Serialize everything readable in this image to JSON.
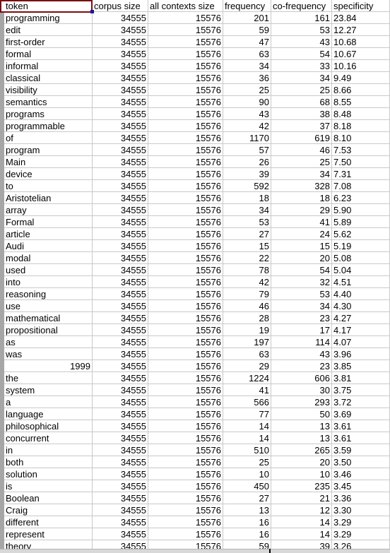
{
  "sheet": {
    "headers": [
      "token",
      "corpus size",
      "all contexts size",
      "frequency",
      "co-frequency",
      "specificity"
    ],
    "rows": [
      [
        "programming",
        "34555",
        "15576",
        "201",
        "161",
        "23.84"
      ],
      [
        "edit",
        "34555",
        "15576",
        "59",
        "53",
        "12.27"
      ],
      [
        "first-order",
        "34555",
        "15576",
        "47",
        "43",
        "10.68"
      ],
      [
        "formal",
        "34555",
        "15576",
        "63",
        "54",
        "10.67"
      ],
      [
        "informal",
        "34555",
        "15576",
        "34",
        "33",
        "10.16"
      ],
      [
        "classical",
        "34555",
        "15576",
        "36",
        "34",
        "9.49"
      ],
      [
        "visibility",
        "34555",
        "15576",
        "25",
        "25",
        "8.66"
      ],
      [
        "semantics",
        "34555",
        "15576",
        "90",
        "68",
        "8.55"
      ],
      [
        "programs",
        "34555",
        "15576",
        "43",
        "38",
        "8.48"
      ],
      [
        "programmable",
        "34555",
        "15576",
        "42",
        "37",
        "8.18"
      ],
      [
        "of",
        "34555",
        "15576",
        "1170",
        "619",
        "8.10"
      ],
      [
        "program",
        "34555",
        "15576",
        "57",
        "46",
        "7.53"
      ],
      [
        "Main",
        "34555",
        "15576",
        "26",
        "25",
        "7.50"
      ],
      [
        "device",
        "34555",
        "15576",
        "39",
        "34",
        "7.31"
      ],
      [
        "to",
        "34555",
        "15576",
        "592",
        "328",
        "7.08"
      ],
      [
        "Aristotelian",
        "34555",
        "15576",
        "18",
        "18",
        "6.23"
      ],
      [
        "array",
        "34555",
        "15576",
        "34",
        "29",
        "5.90"
      ],
      [
        "Formal",
        "34555",
        "15576",
        "53",
        "41",
        "5.89"
      ],
      [
        "article",
        "34555",
        "15576",
        "27",
        "24",
        "5.62"
      ],
      [
        "Audi",
        "34555",
        "15576",
        "15",
        "15",
        "5.19"
      ],
      [
        "modal",
        "34555",
        "15576",
        "22",
        "20",
        "5.08"
      ],
      [
        "used",
        "34555",
        "15576",
        "78",
        "54",
        "5.04"
      ],
      [
        "into",
        "34555",
        "15576",
        "42",
        "32",
        "4.51"
      ],
      [
        "reasoning",
        "34555",
        "15576",
        "79",
        "53",
        "4.40"
      ],
      [
        "use",
        "34555",
        "15576",
        "46",
        "34",
        "4.30"
      ],
      [
        "mathematical",
        "34555",
        "15576",
        "28",
        "23",
        "4.27"
      ],
      [
        "propositional",
        "34555",
        "15576",
        "19",
        "17",
        "4.17"
      ],
      [
        "as",
        "34555",
        "15576",
        "197",
        "114",
        "4.07"
      ],
      [
        "was",
        "34555",
        "15576",
        "63",
        "43",
        "3.96"
      ],
      [
        "1999",
        "34555",
        "15576",
        "29",
        "23",
        "3.85"
      ],
      [
        "the",
        "34555",
        "15576",
        "1224",
        "606",
        "3.81"
      ],
      [
        "system",
        "34555",
        "15576",
        "41",
        "30",
        "3.75"
      ],
      [
        "a",
        "34555",
        "15576",
        "566",
        "293",
        "3.72"
      ],
      [
        "language",
        "34555",
        "15576",
        "77",
        "50",
        "3.69"
      ],
      [
        "philosophical",
        "34555",
        "15576",
        "14",
        "13",
        "3.61"
      ],
      [
        "concurrent",
        "34555",
        "15576",
        "14",
        "13",
        "3.61"
      ],
      [
        "in",
        "34555",
        "15576",
        "510",
        "265",
        "3.59"
      ],
      [
        "both",
        "34555",
        "15576",
        "25",
        "20",
        "3.50"
      ],
      [
        "solution",
        "34555",
        "15576",
        "10",
        "10",
        "3.46"
      ],
      [
        "is",
        "34555",
        "15576",
        "450",
        "235",
        "3.45"
      ],
      [
        "Boolean",
        "34555",
        "15576",
        "27",
        "21",
        "3.36"
      ],
      [
        "Craig",
        "34555",
        "15576",
        "13",
        "12",
        "3.30"
      ],
      [
        "different",
        "34555",
        "15576",
        "16",
        "14",
        "3.29"
      ],
      [
        "represent",
        "34555",
        "15576",
        "16",
        "14",
        "3.29"
      ],
      [
        "theory",
        "34555",
        "15576",
        "59",
        "39",
        "3.26"
      ]
    ]
  }
}
